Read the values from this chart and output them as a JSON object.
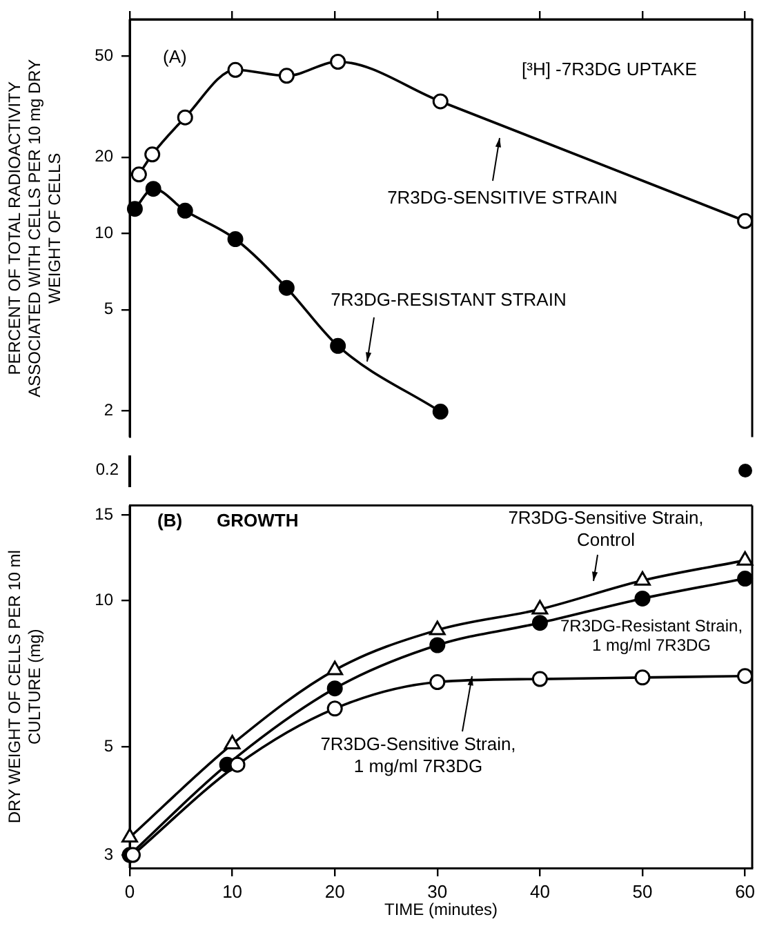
{
  "chart_data": [
    {
      "type": "line",
      "ylabel": "PERCENT OF TOTAL RADIOACTIVITY ASSOCIATED WITH CELLS PER 10 mg DRY WEIGHT OF CELLS",
      "annotations": [
        "(A)",
        "[³H] -7R3DG UPTAKE"
      ],
      "log": "y",
      "xlim": [
        0,
        60.7
      ],
      "xticks": [
        0,
        10,
        20,
        30,
        40,
        50,
        60
      ],
      "ylim": [
        1.57,
        70
      ],
      "yticks": [
        2,
        5,
        10,
        20,
        50
      ],
      "tick_labels": "y",
      "marker": "circle",
      "series": [
        {
          "name": "7R3DG-SENSITIVE STRAIN",
          "color": "#ffffff",
          "x": [
            0.9,
            2.2,
            5.4,
            10.3,
            15.3,
            20.3,
            30.3,
            60
          ],
          "values": [
            17.1,
            20.5,
            28.7,
            44.2,
            41.9,
            47.6,
            33.2,
            11.2
          ]
        },
        {
          "name": "7R3DG-RESISTANT STRAIN",
          "color": "#000000",
          "x": [
            0.5,
            2.3,
            5.4,
            10.3,
            15.3,
            20.3,
            30.3
          ],
          "values": [
            12.5,
            15.0,
            12.3,
            9.5,
            6.1,
            3.6,
            1.98
          ]
        }
      ]
    },
    {
      "type": "other",
      "annotations": [
        "0.2"
      ]
    },
    {
      "type": "line",
      "xlabel": "TIME (minutes)",
      "ylabel": "DRY WEIGHT OF CELLS PER 10 ml CULTURE (mg)",
      "annotations": [
        "(B)",
        "GROWTH"
      ],
      "log": "y",
      "xlim": [
        0,
        60.7
      ],
      "xticks": [
        0,
        10,
        20,
        30,
        40,
        50,
        60
      ],
      "ylim": [
        2.82,
        15.7
      ],
      "yticks": [
        3,
        5,
        10,
        15
      ],
      "series": [
        {
          "name": "7R3DG-Sensitive Strain, Control",
          "color": "#ffffff",
          "marker": "triangle",
          "x": [
            0,
            10,
            20,
            30,
            40,
            50,
            60
          ],
          "values": [
            3.26,
            5.07,
            7.2,
            8.7,
            9.6,
            11.0,
            12.1
          ]
        },
        {
          "name": "7R3DG-Resistant Strain, 1 mg/ml 7R3DG",
          "color": "#000000",
          "marker": "circle",
          "x": [
            0,
            9.5,
            20,
            30,
            40,
            50,
            60
          ],
          "values": [
            3.0,
            4.6,
            6.6,
            8.1,
            9.0,
            10.1,
            11.1
          ]
        },
        {
          "name": "7R3DG-Sensitive Strain, 1 mg/ml 7R3DG",
          "color": "#ffffff",
          "marker": "circle",
          "x": [
            0.3,
            10.5,
            20,
            30,
            40,
            50,
            60
          ],
          "values": [
            3.0,
            4.6,
            6.0,
            6.8,
            6.9,
            6.95,
            7.0
          ]
        }
      ]
    }
  ]
}
